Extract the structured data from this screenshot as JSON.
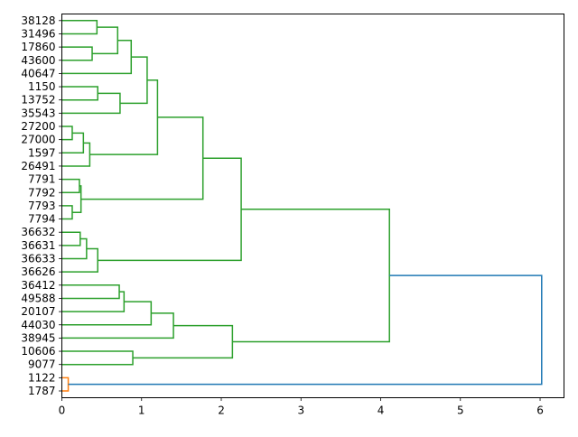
{
  "chart_data": {
    "type": "dendrogram",
    "orientation": "horizontal",
    "title": "",
    "xlabel": "",
    "ylabel": "",
    "xlim": [
      0,
      6.3
    ],
    "x_ticks": [
      0,
      1,
      2,
      3,
      4,
      5,
      6
    ],
    "grid": false,
    "colors": {
      "cluster_a": "#2ca02c",
      "cluster_b": "#ff7f0e",
      "root": "#1f77b4"
    },
    "leaves": [
      "38128",
      "31496",
      "17860",
      "43600",
      "40647",
      "1150",
      "13752",
      "35543",
      "27200",
      "27000",
      "1597",
      "26491",
      "7791",
      "7792",
      "7793",
      "7794",
      "36632",
      "36631",
      "36633",
      "36626",
      "36412",
      "49588",
      "20107",
      "44030",
      "38945",
      "10606",
      "9077",
      "1122",
      "1787"
    ],
    "merges": [
      {
        "left": "L0",
        "right": "L1",
        "height": 0.44,
        "color": "cluster_a"
      },
      {
        "left": "L2",
        "right": "L3",
        "height": 0.38,
        "color": "cluster_a"
      },
      {
        "left": "M0",
        "right": "M1",
        "height": 0.7,
        "color": "cluster_a"
      },
      {
        "left": "M2",
        "right": "L4",
        "height": 0.87,
        "color": "cluster_a"
      },
      {
        "left": "L5",
        "right": "L6",
        "height": 0.45,
        "color": "cluster_a"
      },
      {
        "left": "M4",
        "right": "L7",
        "height": 0.73,
        "color": "cluster_a"
      },
      {
        "left": "M3",
        "right": "M5",
        "height": 1.07,
        "color": "cluster_a"
      },
      {
        "left": "L8",
        "right": "L9",
        "height": 0.13,
        "color": "cluster_a"
      },
      {
        "left": "M7",
        "right": "L10",
        "height": 0.27,
        "color": "cluster_a"
      },
      {
        "left": "M8",
        "right": "L11",
        "height": 0.35,
        "color": "cluster_a"
      },
      {
        "left": "M6",
        "right": "M9",
        "height": 1.2,
        "color": "cluster_a"
      },
      {
        "left": "L12",
        "right": "L13",
        "height": 0.22,
        "color": "cluster_a"
      },
      {
        "left": "L14",
        "right": "L15",
        "height": 0.13,
        "color": "cluster_a"
      },
      {
        "left": "M11",
        "right": "M12",
        "height": 0.24,
        "color": "cluster_a"
      },
      {
        "left": "M10",
        "right": "M13",
        "height": 1.77,
        "color": "cluster_a"
      },
      {
        "left": "L16",
        "right": "L17",
        "height": 0.23,
        "color": "cluster_a"
      },
      {
        "left": "M15",
        "right": "L18",
        "height": 0.31,
        "color": "cluster_a"
      },
      {
        "left": "M16",
        "right": "L19",
        "height": 0.45,
        "color": "cluster_a"
      },
      {
        "left": "M14",
        "right": "M17",
        "height": 2.25,
        "color": "cluster_a"
      },
      {
        "left": "L20",
        "right": "L21",
        "height": 0.72,
        "color": "cluster_a"
      },
      {
        "left": "M19",
        "right": "L22",
        "height": 0.78,
        "color": "cluster_a"
      },
      {
        "left": "M20",
        "right": "L23",
        "height": 1.12,
        "color": "cluster_a"
      },
      {
        "left": "M21",
        "right": "L24",
        "height": 1.4,
        "color": "cluster_a"
      },
      {
        "left": "L25",
        "right": "L26",
        "height": 0.89,
        "color": "cluster_a"
      },
      {
        "left": "M22",
        "right": "M23",
        "height": 2.14,
        "color": "cluster_a"
      },
      {
        "left": "M18",
        "right": "M24",
        "height": 4.11,
        "color": "cluster_a"
      },
      {
        "left": "L27",
        "right": "L28",
        "height": 0.08,
        "color": "cluster_b"
      },
      {
        "left": "M25",
        "right": "M26",
        "height": 6.02,
        "color": "root"
      }
    ]
  }
}
